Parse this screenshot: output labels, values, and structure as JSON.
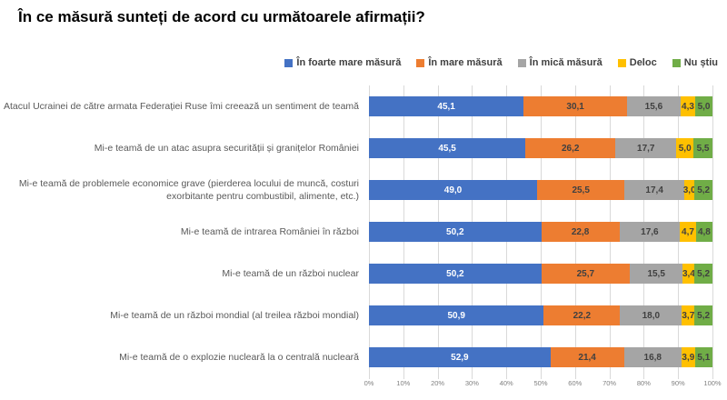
{
  "title": "În ce măsură sunteți de acord cu următoarele afirmații?",
  "colors": {
    "series_blue": "#4472C4",
    "series_orange": "#ED7D31",
    "series_gray": "#A5A5A5",
    "series_yellow": "#FFC000",
    "series_green": "#70AD47",
    "gridline": "#D9D9D9",
    "label_text": "#595959",
    "data_label_on_blue": "#FFFFFF",
    "data_label_dark": "#404040",
    "axis_text": "#808080"
  },
  "chart_data": {
    "type": "bar",
    "variant": "horizontal-100%-stacked",
    "title": "În ce măsură sunteți de acord cu următoarele afirmații?",
    "categories": [
      "Atacul Ucrainei de către armata Federației Ruse îmi creează un sentiment de teamă",
      "Mi-e teamă de un atac asupra securității și granițelor României",
      "Mi-e teamă de problemele economice grave (pierderea locului de muncă, costuri exorbitante pentru combustibil, alimente, etc.)",
      "Mi-e teamă de intrarea României în război",
      "Mi-e teamă de un război nuclear",
      "Mi-e teamă de un război mondial (al treilea război mondial)",
      "Mi-e teamă de o explozie nucleară la o centrală nucleară"
    ],
    "series": [
      {
        "name": "În foarte mare măsură",
        "color": "#4472C4",
        "values": [
          45.1,
          45.5,
          49.0,
          50.2,
          50.2,
          50.9,
          52.9
        ]
      },
      {
        "name": "În mare măsură",
        "color": "#ED7D31",
        "values": [
          30.1,
          26.2,
          25.5,
          22.8,
          25.7,
          22.2,
          21.4
        ]
      },
      {
        "name": "În mică măsură",
        "color": "#A5A5A5",
        "values": [
          15.6,
          17.7,
          17.4,
          17.6,
          15.5,
          18.0,
          16.8
        ]
      },
      {
        "name": "Deloc",
        "color": "#FFC000",
        "values": [
          4.3,
          5.0,
          3.0,
          4.7,
          3.4,
          3.7,
          3.9
        ]
      },
      {
        "name": "Nu știu",
        "color": "#70AD47",
        "values": [
          5.0,
          5.5,
          5.2,
          4.8,
          5.2,
          5.2,
          5.1
        ]
      }
    ],
    "xlabel": "",
    "ylabel": "",
    "xlim": [
      0,
      100
    ],
    "axis_ticks": [
      "0%",
      "10%",
      "20%",
      "30%",
      "40%",
      "50%",
      "60%",
      "70%",
      "80%",
      "90%",
      "100%"
    ],
    "grid": true,
    "legend_position": "top-right",
    "decimal_display": "comma"
  }
}
